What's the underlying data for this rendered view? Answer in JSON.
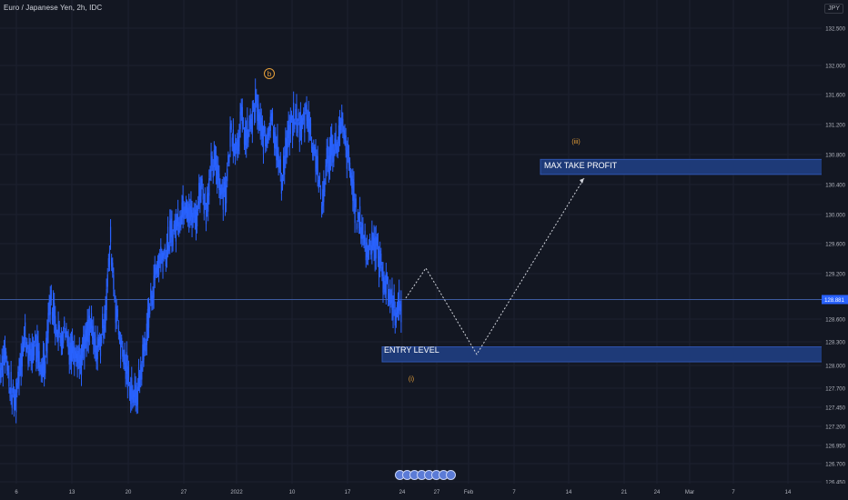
{
  "header": {
    "symbol": "Euro / Japanese Yen, 2h, IDC",
    "currency": "JPY"
  },
  "price_axis": {
    "labels": [
      "132.500",
      "132.000",
      "131.600",
      "131.200",
      "130.800",
      "130.400",
      "130.000",
      "129.600",
      "129.200",
      "128.600",
      "128.300",
      "128.000",
      "127.700",
      "127.450",
      "127.200",
      "126.950",
      "126.700",
      "126.450"
    ],
    "current_price": "128.881"
  },
  "time_axis": {
    "labels": [
      "6",
      "13",
      "20",
      "27",
      "2022",
      "10",
      "17",
      "24",
      "27",
      "Feb",
      "7",
      "14",
      "21",
      "24",
      "Mar",
      "7",
      "14"
    ]
  },
  "annotations": {
    "wave_b": "b",
    "wave_iii": "(iii)",
    "wave_i": "(i)",
    "max_take_profit": "MAX TAKE PROFIT",
    "entry_level": "ENTRY LEVEL"
  },
  "colors": {
    "background": "#131722",
    "candles": "#2962ff",
    "zone_fill": "#1e3a78",
    "wave_label": "#e8a13a",
    "price_line": "#3d5a9e"
  },
  "chart_data": {
    "type": "line",
    "title": "Euro / Japanese Yen, 2h, IDC",
    "xlabel": "",
    "ylabel": "",
    "ylim": [
      126.45,
      132.7
    ],
    "series": [
      {
        "values": [
          127.95,
          128.2,
          127.7,
          127.5,
          128.05,
          128.4,
          128.1,
          128.3,
          127.95,
          128.1,
          128.9,
          128.6,
          128.35,
          128.5,
          128.2,
          128.25,
          128.05,
          128.3,
          128.55,
          128.2,
          128.3,
          128.75,
          129.65,
          128.8,
          128.3,
          128.0,
          127.7,
          127.55,
          127.9,
          128.35,
          128.85,
          129.25,
          129.45,
          129.5,
          129.75,
          129.85,
          130.05,
          130.2,
          130.0,
          129.95,
          130.45,
          130.1,
          130.6,
          130.7,
          130.35,
          130.35,
          131.15,
          130.9,
          131.3,
          131.0,
          131.25,
          131.5,
          131.1,
          131.0,
          131.35,
          130.95,
          130.45,
          130.95,
          131.2,
          131.3,
          131.15,
          131.45,
          131.0,
          130.75,
          130.1,
          130.7,
          130.9,
          130.95,
          131.2,
          130.85,
          130.45,
          129.95,
          129.85,
          129.5,
          129.7,
          129.55,
          129.25,
          129.05,
          128.85,
          128.7,
          128.85
        ]
      }
    ],
    "projection": {
      "type": "line",
      "values": [
        128.9,
        129.3,
        128.15,
        130.5
      ]
    },
    "zones": [
      {
        "label": "MAX TAKE PROFIT",
        "top": 130.75,
        "bottom": 130.55
      },
      {
        "label": "ENTRY LEVEL",
        "top": 128.25,
        "bottom": 128.05
      }
    ],
    "current_price": 128.881
  }
}
